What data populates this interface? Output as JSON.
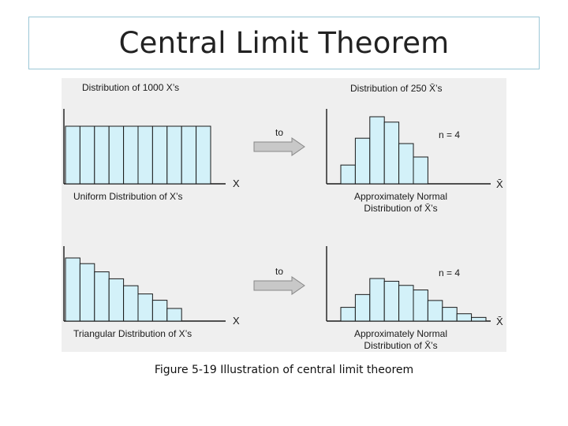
{
  "slide": {
    "title": "Central Limit Theorem",
    "caption": "Figure 5-19 Illustration of central limit theorem"
  },
  "figure": {
    "colors": {
      "background": "#efefef",
      "bar_fill": "#d3f1f9",
      "bar_stroke": "#1a1a1a",
      "axis": "#1a1a1a",
      "arrow_fill": "#c8c8c8"
    },
    "rows": [
      {
        "left_title": "Distribution of 1000 X’s",
        "left_axis_label": "X",
        "left_caption": "Uniform Distribution of X’s",
        "left_bars": [
          1,
          1,
          1,
          1,
          1,
          1,
          1,
          1,
          1,
          1
        ],
        "arrow_label": "to",
        "right_title": "Distribution of 250 X̄’s",
        "right_axis_label": "X̄",
        "sample_size_label": "n = 4",
        "right_caption_line1": "Approximately Normal",
        "right_caption_line2": "Distribution of X̄’s",
        "right_bars": [
          0.28,
          0.68,
          1.0,
          0.92,
          0.6,
          0.4
        ]
      },
      {
        "left_title": "",
        "left_axis_label": "X",
        "left_caption": "Triangular Distribution of X’s",
        "left_bars": [
          1.0,
          0.91,
          0.78,
          0.67,
          0.56,
          0.43,
          0.33,
          0.2
        ],
        "arrow_label": "to",
        "right_title": "",
        "right_axis_label": "X̄",
        "sample_size_label": "n = 4",
        "right_caption_line1": "Approximately Normal",
        "right_caption_line2": "Distribution of X̄’s",
        "right_bars": [
          0.3,
          0.58,
          0.93,
          0.87,
          0.78,
          0.68,
          0.45,
          0.3,
          0.16,
          0.08
        ]
      }
    ]
  }
}
